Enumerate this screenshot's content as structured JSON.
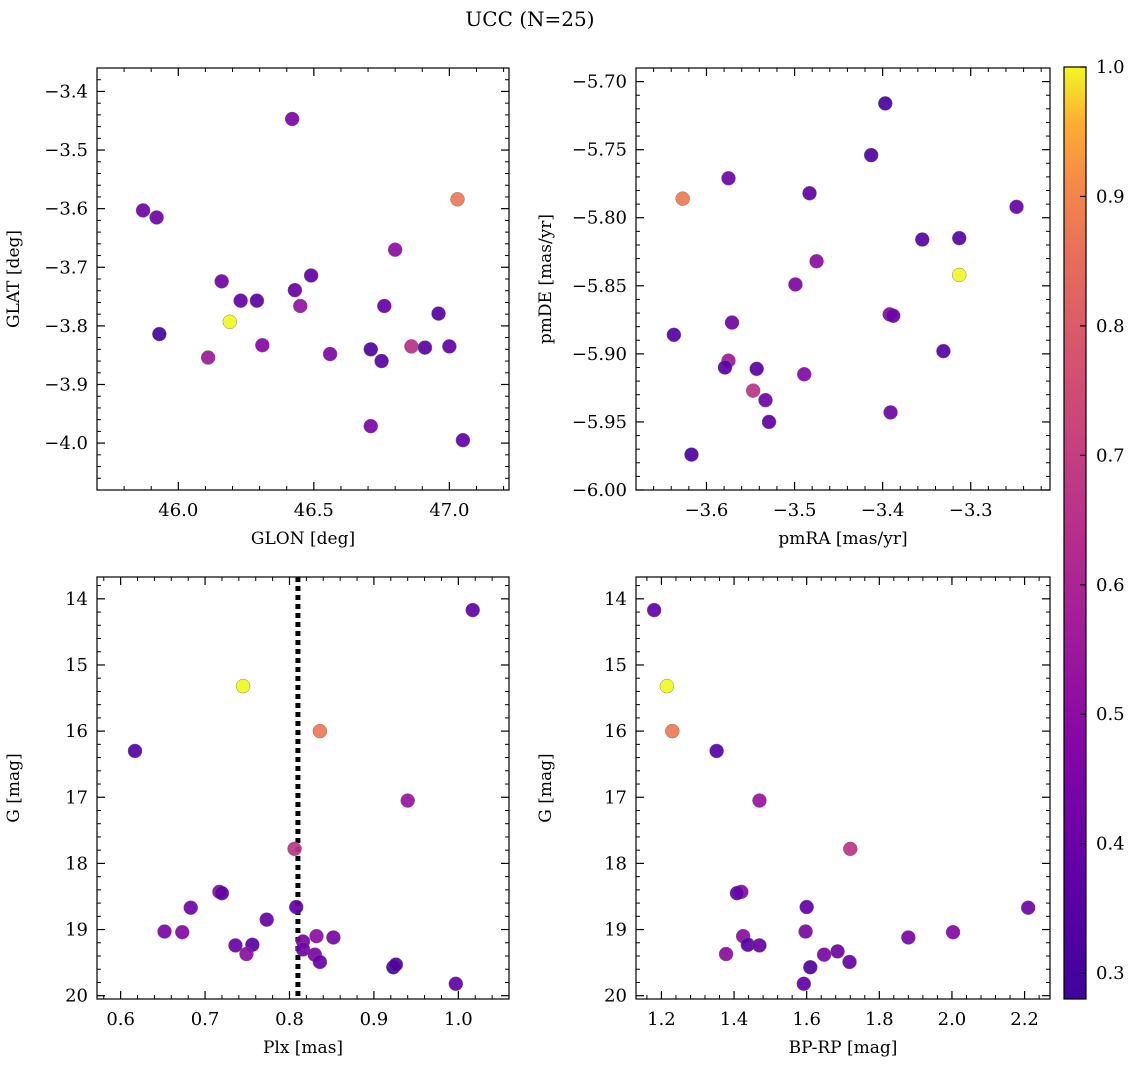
{
  "title": "UCC (N=25)",
  "colors": {
    "colormap": "plasma",
    "vline": "#000000"
  },
  "colorbar": {
    "range": [
      0.28,
      1.0
    ],
    "ticks": [
      "0.3",
      "0.4",
      "0.5",
      "0.6",
      "0.7",
      "0.8",
      "0.9",
      "1.0"
    ]
  },
  "chart_data": [
    {
      "type": "scatter",
      "id": "glon-glat",
      "xlabel": "GLON [deg]",
      "ylabel": "GLAT [deg]",
      "xlim": [
        45.7,
        47.22
      ],
      "ylim": [
        -4.08,
        -3.36
      ],
      "y_inverted": false,
      "xticks": [
        46.0,
        46.5,
        47.0
      ],
      "xtick_labels": [
        "46.0",
        "46.5",
        "47.0"
      ],
      "yticks": [
        -4.0,
        -3.9,
        -3.8,
        -3.7,
        -3.6,
        -3.5,
        -3.4
      ],
      "ytick_labels": [
        "−4.0",
        "−3.9",
        "−3.8",
        "−3.7",
        "−3.6",
        "−3.5",
        "−3.4"
      ],
      "points": [
        {
          "x": 46.42,
          "y": -3.447,
          "c": 0.45
        },
        {
          "x": 45.87,
          "y": -3.603,
          "c": 0.42
        },
        {
          "x": 45.92,
          "y": -3.615,
          "c": 0.42
        },
        {
          "x": 47.03,
          "y": -3.584,
          "c": 0.88
        },
        {
          "x": 46.8,
          "y": -3.67,
          "c": 0.5
        },
        {
          "x": 46.16,
          "y": -3.724,
          "c": 0.42
        },
        {
          "x": 46.49,
          "y": -3.714,
          "c": 0.38
        },
        {
          "x": 46.43,
          "y": -3.739,
          "c": 0.4
        },
        {
          "x": 46.23,
          "y": -3.757,
          "c": 0.38
        },
        {
          "x": 46.29,
          "y": -3.757,
          "c": 0.36
        },
        {
          "x": 46.45,
          "y": -3.766,
          "c": 0.52
        },
        {
          "x": 46.76,
          "y": -3.766,
          "c": 0.4
        },
        {
          "x": 46.96,
          "y": -3.779,
          "c": 0.35
        },
        {
          "x": 46.19,
          "y": -3.793,
          "c": 1.0
        },
        {
          "x": 45.93,
          "y": -3.814,
          "c": 0.3
        },
        {
          "x": 46.31,
          "y": -3.833,
          "c": 0.48
        },
        {
          "x": 46.86,
          "y": -3.835,
          "c": 0.65
        },
        {
          "x": 46.91,
          "y": -3.837,
          "c": 0.36
        },
        {
          "x": 47.0,
          "y": -3.835,
          "c": 0.38
        },
        {
          "x": 46.71,
          "y": -3.84,
          "c": 0.33
        },
        {
          "x": 46.56,
          "y": -3.848,
          "c": 0.46
        },
        {
          "x": 46.11,
          "y": -3.854,
          "c": 0.55
        },
        {
          "x": 46.75,
          "y": -3.86,
          "c": 0.35
        },
        {
          "x": 46.71,
          "y": -3.971,
          "c": 0.45
        },
        {
          "x": 47.05,
          "y": -3.995,
          "c": 0.38
        }
      ]
    },
    {
      "type": "scatter",
      "id": "pmra-pmde",
      "xlabel": "pmRA [mas/yr]",
      "ylabel": "pmDE [mas/yr]",
      "xlim": [
        -3.68,
        -3.21
      ],
      "ylim": [
        -6.0,
        -5.69
      ],
      "y_inverted": false,
      "xticks": [
        -3.6,
        -3.5,
        -3.4,
        -3.3
      ],
      "xtick_labels": [
        "−3.6",
        "−3.5",
        "−3.4",
        "−3.3"
      ],
      "yticks": [
        -6.0,
        -5.95,
        -5.9,
        -5.85,
        -5.8,
        -5.75,
        -5.7
      ],
      "ytick_labels": [
        "−6.00",
        "−5.95",
        "−5.90",
        "−5.85",
        "−5.80",
        "−5.75",
        "−5.70"
      ],
      "points": [
        {
          "x": -3.397,
          "y": -5.716,
          "c": 0.32
        },
        {
          "x": -3.413,
          "y": -5.754,
          "c": 0.33
        },
        {
          "x": -3.575,
          "y": -5.771,
          "c": 0.42
        },
        {
          "x": -3.483,
          "y": -5.782,
          "c": 0.38
        },
        {
          "x": -3.627,
          "y": -5.786,
          "c": 0.88
        },
        {
          "x": -3.248,
          "y": -5.792,
          "c": 0.4
        },
        {
          "x": -3.355,
          "y": -5.816,
          "c": 0.35
        },
        {
          "x": -3.313,
          "y": -5.815,
          "c": 0.35
        },
        {
          "x": -3.475,
          "y": -5.832,
          "c": 0.5
        },
        {
          "x": -3.313,
          "y": -5.842,
          "c": 1.0
        },
        {
          "x": -3.499,
          "y": -5.849,
          "c": 0.46
        },
        {
          "x": -3.392,
          "y": -5.871,
          "c": 0.48
        },
        {
          "x": -3.388,
          "y": -5.872,
          "c": 0.4
        },
        {
          "x": -3.571,
          "y": -5.877,
          "c": 0.42
        },
        {
          "x": -3.637,
          "y": -5.886,
          "c": 0.35
        },
        {
          "x": -3.331,
          "y": -5.898,
          "c": 0.35
        },
        {
          "x": -3.575,
          "y": -5.905,
          "c": 0.56
        },
        {
          "x": -3.579,
          "y": -5.91,
          "c": 0.36
        },
        {
          "x": -3.543,
          "y": -5.911,
          "c": 0.36
        },
        {
          "x": -3.489,
          "y": -5.915,
          "c": 0.48
        },
        {
          "x": -3.547,
          "y": -5.927,
          "c": 0.66
        },
        {
          "x": -3.533,
          "y": -5.934,
          "c": 0.42
        },
        {
          "x": -3.391,
          "y": -5.943,
          "c": 0.42
        },
        {
          "x": -3.529,
          "y": -5.95,
          "c": 0.38
        },
        {
          "x": -3.617,
          "y": -5.974,
          "c": 0.33
        }
      ]
    },
    {
      "type": "scatter",
      "id": "plx-g",
      "xlabel": "Plx [mas]",
      "ylabel": "G [mag]",
      "xlim": [
        0.572,
        1.06
      ],
      "ylim": [
        20.05,
        13.67
      ],
      "y_inverted": true,
      "xticks": [
        0.6,
        0.7,
        0.8,
        0.9,
        1.0
      ],
      "xtick_labels": [
        "0.6",
        "0.7",
        "0.8",
        "0.9",
        "1.0"
      ],
      "yticks": [
        14,
        15,
        16,
        17,
        18,
        19,
        20
      ],
      "ytick_labels": [
        "14",
        "15",
        "16",
        "17",
        "18",
        "19",
        "20"
      ],
      "vline": 0.81,
      "points": [
        {
          "x": 1.017,
          "y": 14.17,
          "c": 0.38
        },
        {
          "x": 0.745,
          "y": 15.32,
          "c": 1.0
        },
        {
          "x": 0.617,
          "y": 16.3,
          "c": 0.35
        },
        {
          "x": 0.836,
          "y": 16.0,
          "c": 0.88
        },
        {
          "x": 0.94,
          "y": 17.05,
          "c": 0.53
        },
        {
          "x": 0.806,
          "y": 17.78,
          "c": 0.66
        },
        {
          "x": 0.717,
          "y": 18.43,
          "c": 0.48
        },
        {
          "x": 0.72,
          "y": 18.45,
          "c": 0.38
        },
        {
          "x": 0.683,
          "y": 18.67,
          "c": 0.42
        },
        {
          "x": 0.808,
          "y": 18.66,
          "c": 0.38
        },
        {
          "x": 0.773,
          "y": 18.85,
          "c": 0.4
        },
        {
          "x": 0.652,
          "y": 19.03,
          "c": 0.45
        },
        {
          "x": 0.673,
          "y": 19.04,
          "c": 0.48
        },
        {
          "x": 0.832,
          "y": 19.1,
          "c": 0.5
        },
        {
          "x": 0.852,
          "y": 19.12,
          "c": 0.45
        },
        {
          "x": 0.816,
          "y": 19.18,
          "c": 0.45
        },
        {
          "x": 0.736,
          "y": 19.24,
          "c": 0.4
        },
        {
          "x": 0.756,
          "y": 19.23,
          "c": 0.35
        },
        {
          "x": 0.816,
          "y": 19.3,
          "c": 0.42
        },
        {
          "x": 0.83,
          "y": 19.38,
          "c": 0.45
        },
        {
          "x": 0.749,
          "y": 19.37,
          "c": 0.5
        },
        {
          "x": 0.836,
          "y": 19.49,
          "c": 0.4
        },
        {
          "x": 0.923,
          "y": 19.57,
          "c": 0.3
        },
        {
          "x": 0.926,
          "y": 19.53,
          "c": 0.33
        },
        {
          "x": 0.997,
          "y": 19.82,
          "c": 0.38
        }
      ]
    },
    {
      "type": "scatter",
      "id": "bprp-g",
      "xlabel": "BP-RP [mag]",
      "ylabel": "G [mag]",
      "xlim": [
        1.13,
        2.27
      ],
      "ylim": [
        20.05,
        13.67
      ],
      "y_inverted": true,
      "xticks": [
        1.2,
        1.4,
        1.6,
        1.8,
        2.0,
        2.2
      ],
      "xtick_labels": [
        "1.2",
        "1.4",
        "1.6",
        "1.8",
        "2.0",
        "2.2"
      ],
      "yticks": [
        14,
        15,
        16,
        17,
        18,
        19,
        20
      ],
      "ytick_labels": [
        "14",
        "15",
        "16",
        "17",
        "18",
        "19",
        "20"
      ],
      "points": [
        {
          "x": 1.18,
          "y": 14.17,
          "c": 0.38
        },
        {
          "x": 1.215,
          "y": 15.32,
          "c": 1.0
        },
        {
          "x": 1.23,
          "y": 16.0,
          "c": 0.88
        },
        {
          "x": 1.352,
          "y": 16.3,
          "c": 0.35
        },
        {
          "x": 1.47,
          "y": 17.05,
          "c": 0.53
        },
        {
          "x": 1.72,
          "y": 17.78,
          "c": 0.66
        },
        {
          "x": 1.42,
          "y": 18.43,
          "c": 0.48
        },
        {
          "x": 1.408,
          "y": 18.45,
          "c": 0.38
        },
        {
          "x": 1.6,
          "y": 18.66,
          "c": 0.38
        },
        {
          "x": 2.21,
          "y": 18.67,
          "c": 0.42
        },
        {
          "x": 1.597,
          "y": 19.03,
          "c": 0.45
        },
        {
          "x": 2.003,
          "y": 19.04,
          "c": 0.48
        },
        {
          "x": 1.425,
          "y": 19.1,
          "c": 0.5
        },
        {
          "x": 1.88,
          "y": 19.12,
          "c": 0.45
        },
        {
          "x": 1.438,
          "y": 19.23,
          "c": 0.35
        },
        {
          "x": 1.47,
          "y": 19.24,
          "c": 0.4
        },
        {
          "x": 1.685,
          "y": 19.33,
          "c": 0.42
        },
        {
          "x": 1.378,
          "y": 19.37,
          "c": 0.5
        },
        {
          "x": 1.648,
          "y": 19.38,
          "c": 0.45
        },
        {
          "x": 1.718,
          "y": 19.49,
          "c": 0.4
        },
        {
          "x": 1.61,
          "y": 19.57,
          "c": 0.33
        },
        {
          "x": 1.592,
          "y": 19.82,
          "c": 0.38
        }
      ]
    }
  ]
}
